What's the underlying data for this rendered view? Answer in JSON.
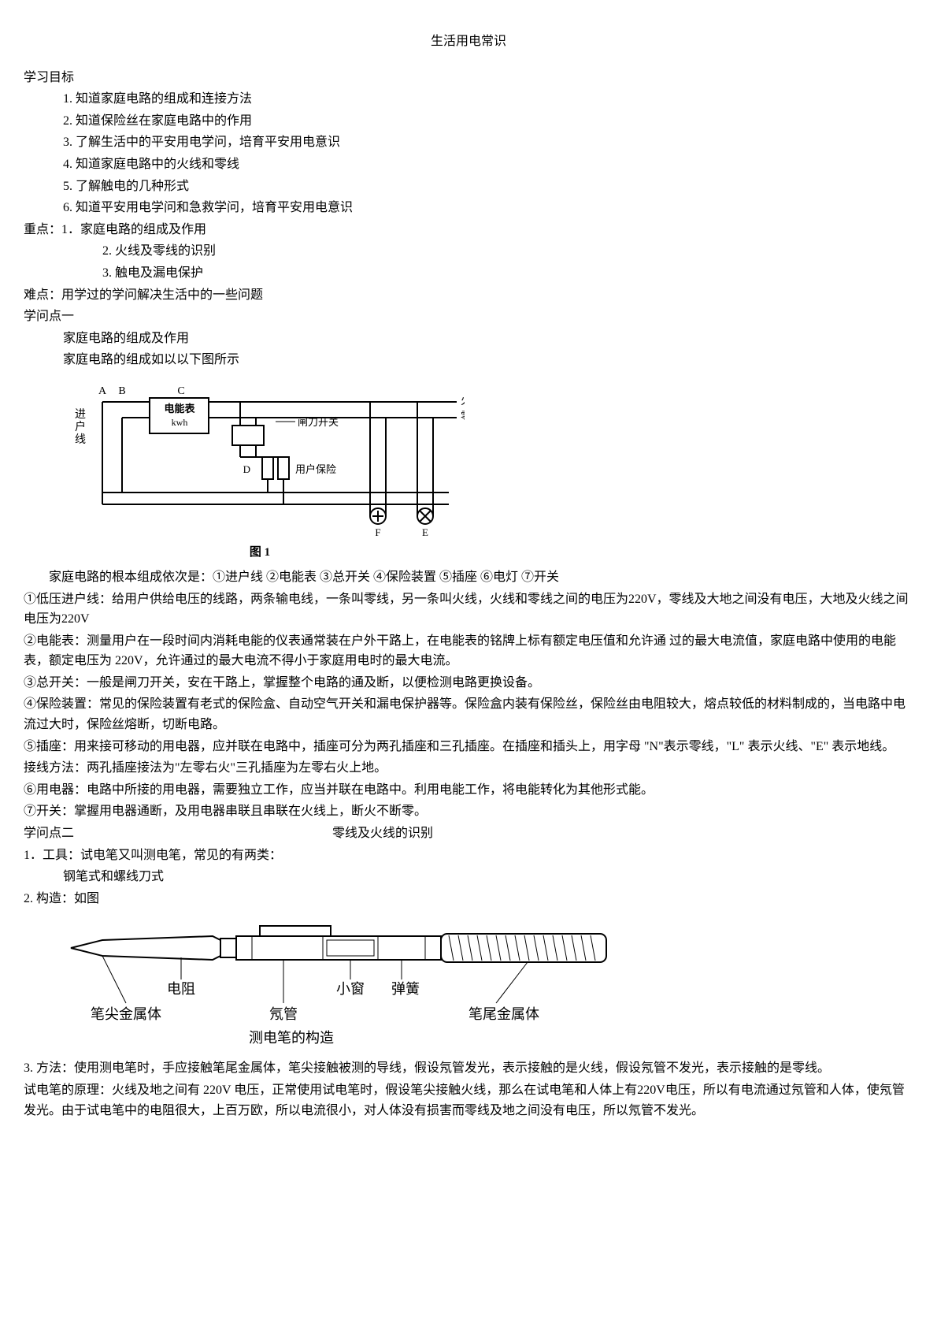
{
  "title": "生活用电常识",
  "goals_heading": "学习目标",
  "goals": [
    "1.  知道家庭电路的组成和连接方法",
    "2.  知道保险丝在家庭电路中的作用",
    "3.  了解生活中的平安用电学问，培育平安用电意识",
    "4.  知道家庭电路中的火线和零线",
    "5.  了解触电的几种形式",
    "6.  知道平安用电学问和急救学问，培育平安用电意识"
  ],
  "keypoints_heading": "重点：1．家庭电路的组成及作用",
  "keypoints": [
    "2.  火线及零线的识别",
    "3.  触电及漏电保护"
  ],
  "difficulty": "难点：用学过的学问解决生活中的一些问题",
  "topic1_heading": "学问点一",
  "topic1_sub1": "家庭电路的组成及作用",
  "topic1_sub2": "家庭电路的组成如以以下图所示",
  "fig1": {
    "labels": {
      "A": "A",
      "B": "B",
      "C": "C",
      "D": "D",
      "E": "E",
      "F": "F",
      "meter": "电能表",
      "kwh": "kwh",
      "switch": "闸刀开关",
      "fuse": "用户保险",
      "in_line": "进户线",
      "fire": "火",
      "zero": "零",
      "caption": "图 1"
    },
    "colors": {
      "stroke": "#000000",
      "bg": "#ffffff"
    }
  },
  "comp_intro": "家庭电路的根本组成依次是：①进户线 ②电能表   ③总开关   ④保险装置   ⑤插座   ⑥电灯   ⑦开关",
  "comp1": "①低压进户线：给用户供给电压的线路，两条输电线，一条叫零线，另一条叫火线，火线和零线之间的电压为220V，零线及大地之间没有电压，大地及火线之间电压为220V",
  "comp2": "②电能表：测量用户在一段时间内消耗电能的仪表通常装在户外干路上，在电能表的铭牌上标有额定电压值和允许通  过的最大电流值，家庭电路中使用的电能表，额定电压为 220V，允许通过的最大电流不得小于家庭用电时的最大电流。",
  "comp3": "③总开关：一般是闸刀开关，安在干路上，掌握整个电路的通及断，以便检测电路更换设备。",
  "comp4": "④保险装置：常见的保险装置有老式的保险盒、自动空气开关和漏电保护器等。保险盒内装有保险丝，保险丝由电阻较大，熔点较低的材料制成的，当电路中电流过大时，保险丝熔断，切断电路。",
  "comp5": "⑤插座：用来接可移动的用电器，应并联在电路中，插座可分为两孔插座和三孔插座。在插座和插头上，用字母 \"N\"表示零线，\"L\" 表示火线、\"E\" 表示地线。",
  "wiring": "接线方法：两孔插座接法为\"左零右火\"三孔插座为左零右火上地。",
  "comp6": "⑥用电器：电路中所接的用电器，需要独立工作，应当并联在电路中。利用电能工作，将电能转化为其他形式能。",
  "comp7": "⑦开关：掌握用电器通断，及用电器串联且串联在火线上，断火不断零。",
  "topic2_heading": "学问点二",
  "topic2_title": "零线及火线的识别",
  "tool1": "1．工具：试电笔又叫测电笔，常见的有两类：",
  "tool1_sub": "钢笔式和螺线刀式",
  "tool2": "2.  构造：如图",
  "fig2": {
    "labels": {
      "tip": "笔尖金属体",
      "res": "电阻",
      "neon": "氖管",
      "window": "小窗",
      "spring": "弹簧",
      "tail": "笔尾金属体",
      "caption": "测电笔的构造"
    },
    "colors": {
      "stroke": "#000000",
      "bg": "#ffffff",
      "gray": "#888888"
    }
  },
  "tool3": "3.  方法：使用测电笔时，手应接触笔尾金属体，笔尖接触被测的导线，假设氖管发光，表示接触的是火线，假设氖管不发光，表示接触的是零线。",
  "principle": "试电笔的原理：火线及地之间有 220V 电压，正常使用试电笔时，假设笔尖接触火线，那么在试电笔和人体上有220V电压，所以有电流通过氖管和人体，使氖管发光。由于试电笔中的电阻很大，上百万欧，所以电流很小，对人体没有损害而零线及地之间没有电压，所以氖管不发光。"
}
